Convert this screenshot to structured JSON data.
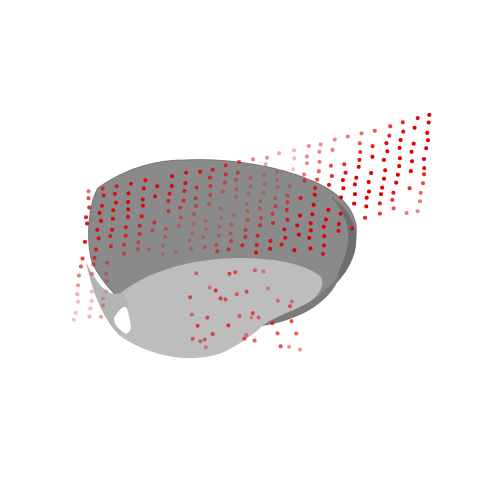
{
  "colors": {
    "background": "#ffffff",
    "top_surface": "#8a8a8a",
    "top_surface_edge": "#6f6f6f",
    "front_surface": "#bdbdbd",
    "front_surface_shadow": "#a9a9a9",
    "point_color": "#e00000"
  },
  "scene": {
    "shape": "3d-surface",
    "points": "point-cloud"
  }
}
